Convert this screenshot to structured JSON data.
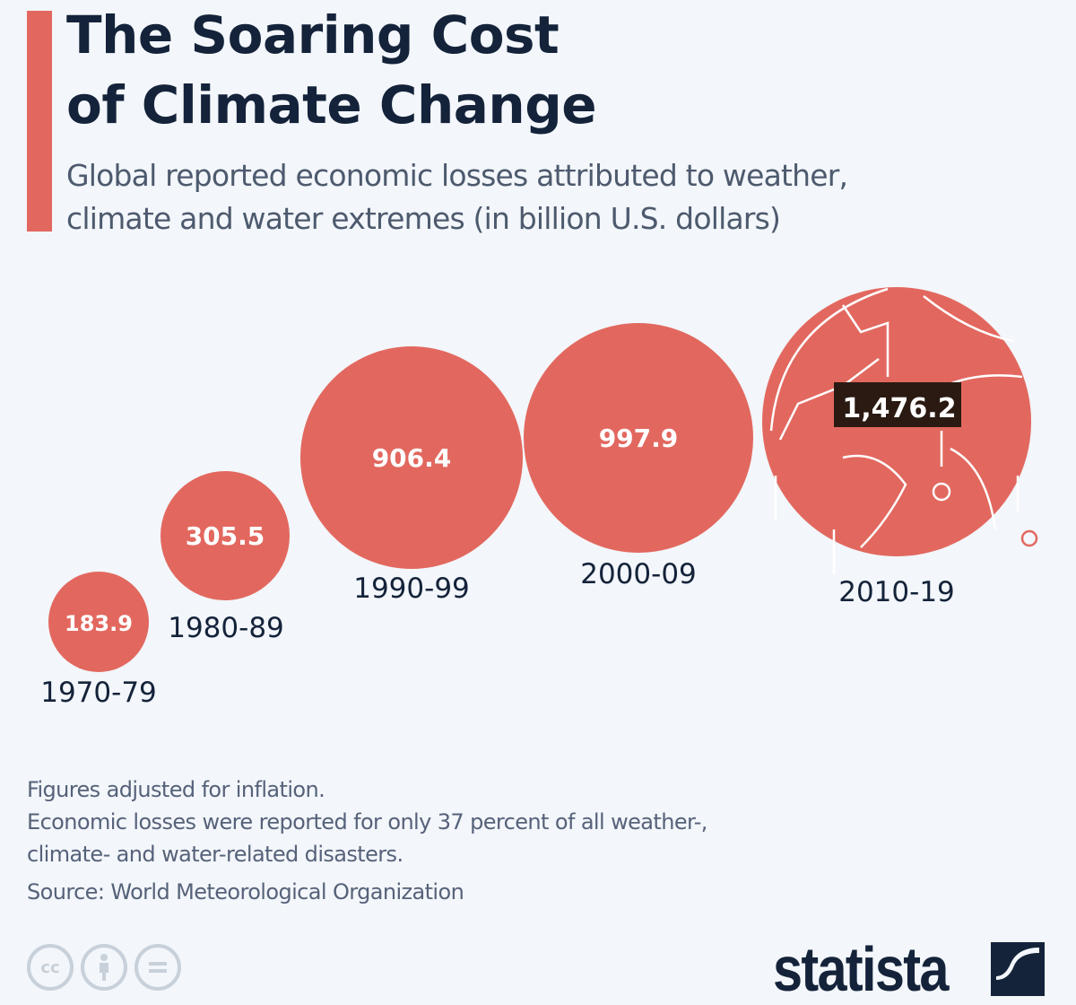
{
  "header": {
    "title_line1": "The Soaring Cost",
    "title_line2": "of Climate Change",
    "subtitle_line1": "Global reported economic losses attributed to weather,",
    "subtitle_line2": "climate and water extremes (in billion U.S. dollars)"
  },
  "chart_data": {
    "type": "bubble",
    "title": "The Soaring Cost of Climate Change",
    "subtitle": "Global reported economic losses attributed to weather, climate and water extremes (in billion U.S. dollars)",
    "unit": "billion U.S. dollars",
    "categories": [
      "1970-79",
      "1980-89",
      "1990-99",
      "2000-09",
      "2010-19"
    ],
    "values": [
      183.9,
      305.5,
      906.4,
      997.9,
      1476.2
    ],
    "value_labels": [
      "183.9",
      "305.5",
      "906.4",
      "997.9",
      "1,476.2"
    ],
    "colors": {
      "bubble": "#e2685f",
      "label_box": "#2a1a12",
      "text": "#14233a"
    }
  },
  "footer": {
    "note1": "Figures adjusted for inflation.",
    "note2_line1": "Economic losses were reported for only 37 percent of all weather-,",
    "note2_line2": "climate- and water-related disasters.",
    "source": "Source: World Meteorological Organization",
    "cc_icons": [
      "cc-icon",
      "attribution-icon",
      "no-derivatives-icon"
    ],
    "cc_label": "cc",
    "logo_text": "statista"
  }
}
